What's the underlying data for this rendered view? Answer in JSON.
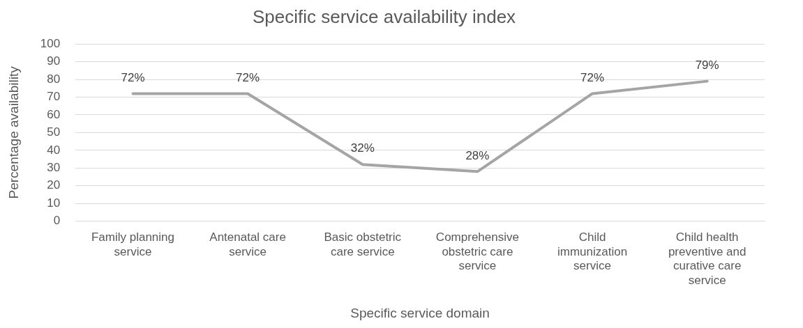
{
  "chart_data": {
    "type": "line",
    "title": "Specific service availability index",
    "xlabel": "Specific service domain",
    "ylabel": "Percentage availability",
    "categories": [
      "Family planning service",
      "Antenatal care service",
      "Basic obstetric care service",
      "Comprehensive obstetric care service",
      "Child immunization service",
      "Child health preventive and curative care service"
    ],
    "series": [
      {
        "color": "#a5a5a5",
        "values": [
          72,
          72,
          32,
          28,
          72,
          79
        ],
        "value_labels": [
          "72%",
          "72%",
          "32%",
          "28%",
          "72%",
          "79%"
        ]
      }
    ],
    "ylim": [
      0,
      100
    ],
    "yticks": [
      0,
      10,
      20,
      30,
      40,
      50,
      60,
      70,
      80,
      90,
      100
    ],
    "grid": "y",
    "legend": false,
    "marker": "none",
    "line_style": "solid"
  }
}
